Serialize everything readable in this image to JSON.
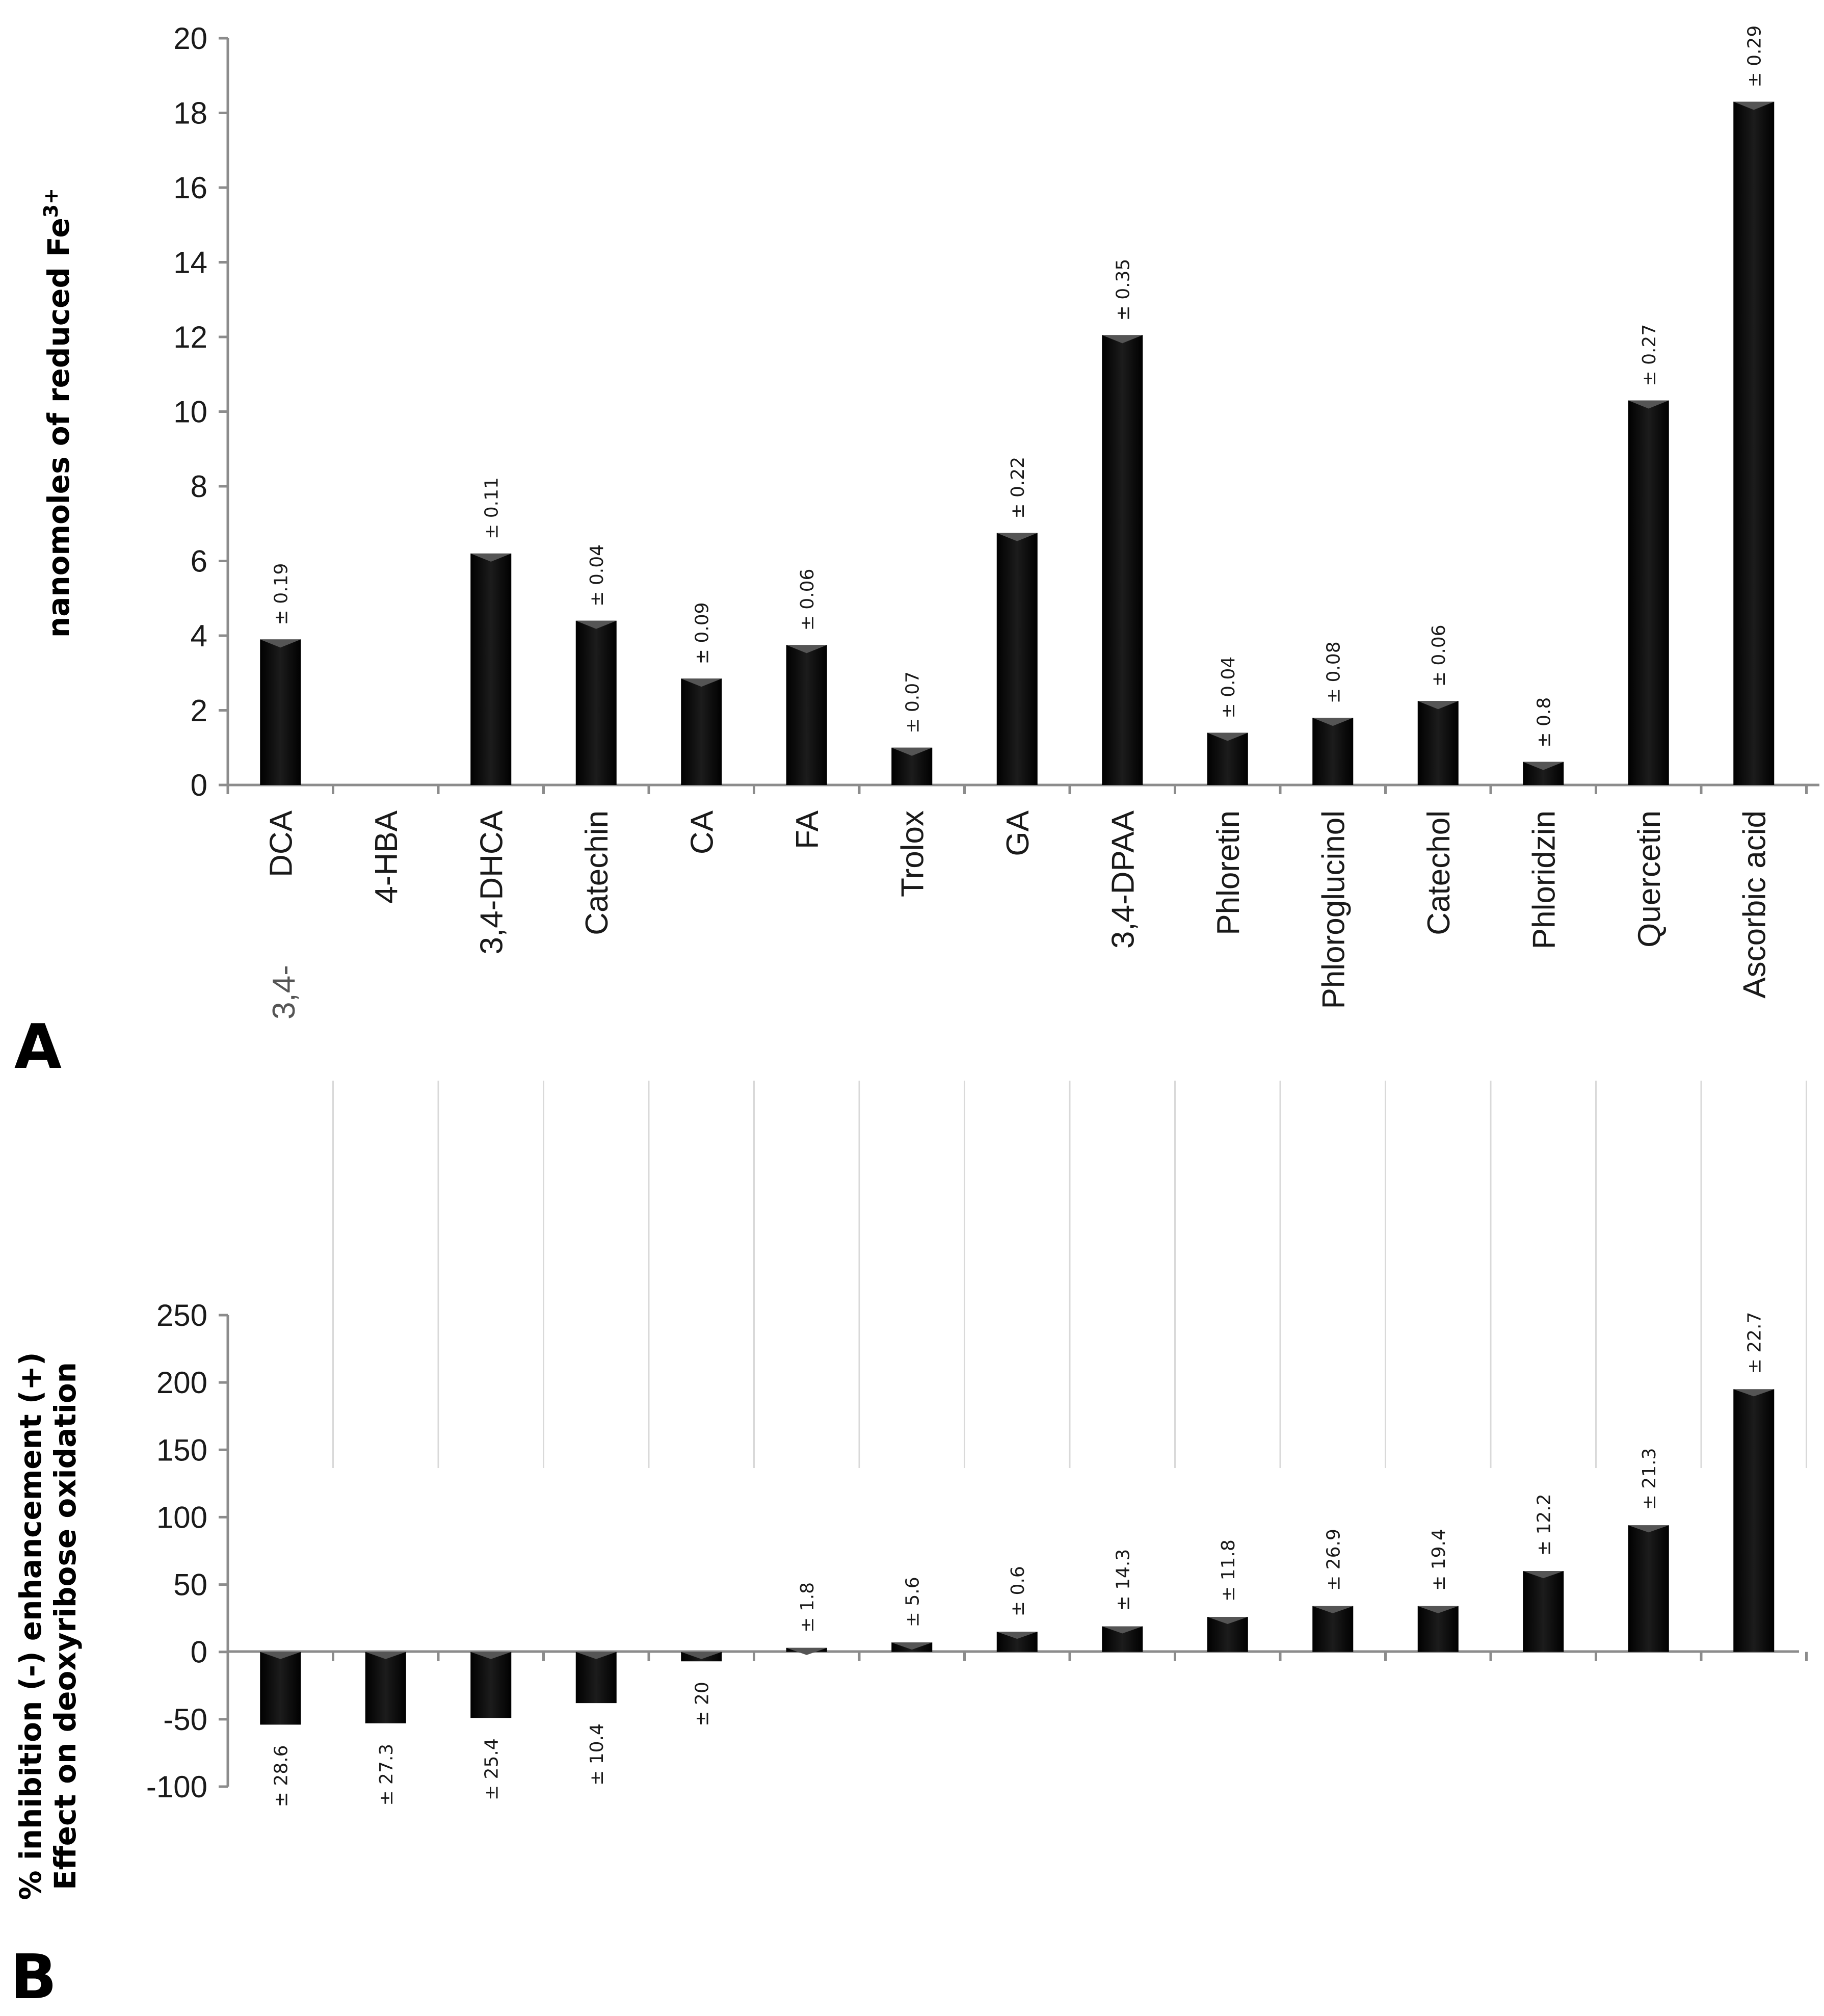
{
  "chart_data": [
    {
      "panel": "A",
      "type": "bar",
      "ylabel_main": "nanomoles of reduced Fe",
      "ylabel_sup": "3+",
      "ylim": [
        0,
        20
      ],
      "yticks": [
        0,
        2,
        4,
        6,
        8,
        10,
        12,
        14,
        16,
        18,
        20
      ],
      "categories": [
        "DCA",
        "4-HBA",
        "3,4-DHCA",
        "Catechin",
        "CA",
        "FA",
        "Trolox",
        "GA",
        "3,4-DPAA",
        "Phloretin",
        "Phloroglucinol",
        "Catechol",
        "Phloridzin",
        "Quercetin",
        "Ascorbic acid"
      ],
      "values": [
        3.9,
        0,
        6.2,
        4.4,
        2.85,
        3.75,
        1.0,
        6.75,
        12.05,
        1.4,
        1.8,
        2.25,
        0.62,
        10.3,
        18.3
      ],
      "errors": [
        "± 0.19",
        "",
        "± 0.11",
        "± 0.04",
        "± 0.09",
        "± 0.06",
        "± 0.07",
        "± 0.22",
        "± 0.35",
        "± 0.04",
        "± 0.08",
        "± 0.06",
        "± 0.8",
        "± 0.27",
        "± 0.29"
      ],
      "prefix_label": "3,4-"
    },
    {
      "panel": "B",
      "type": "bar",
      "ylabel_line1": "% inhibition (-) enhancement (+)",
      "ylabel_line2": "Effect on deoxyribose oxidation",
      "ylim": [
        -100,
        250
      ],
      "yticks": [
        -100,
        -50,
        0,
        50,
        100,
        150,
        200,
        250
      ],
      "values": [
        -54,
        -53,
        -49,
        -38,
        -7,
        3,
        7,
        15,
        19,
        26,
        34,
        34,
        60,
        94,
        195
      ],
      "errors": [
        "± 28.6",
        "± 27.3",
        "± 25.4",
        "± 10.4",
        "± 20",
        "± 1.8",
        "± 5.6",
        "± 0.6",
        "± 14.3",
        "± 11.8",
        "± 26.9",
        "± 19.4",
        "± 12.2",
        "± 21.3",
        "± 22.7"
      ]
    }
  ]
}
